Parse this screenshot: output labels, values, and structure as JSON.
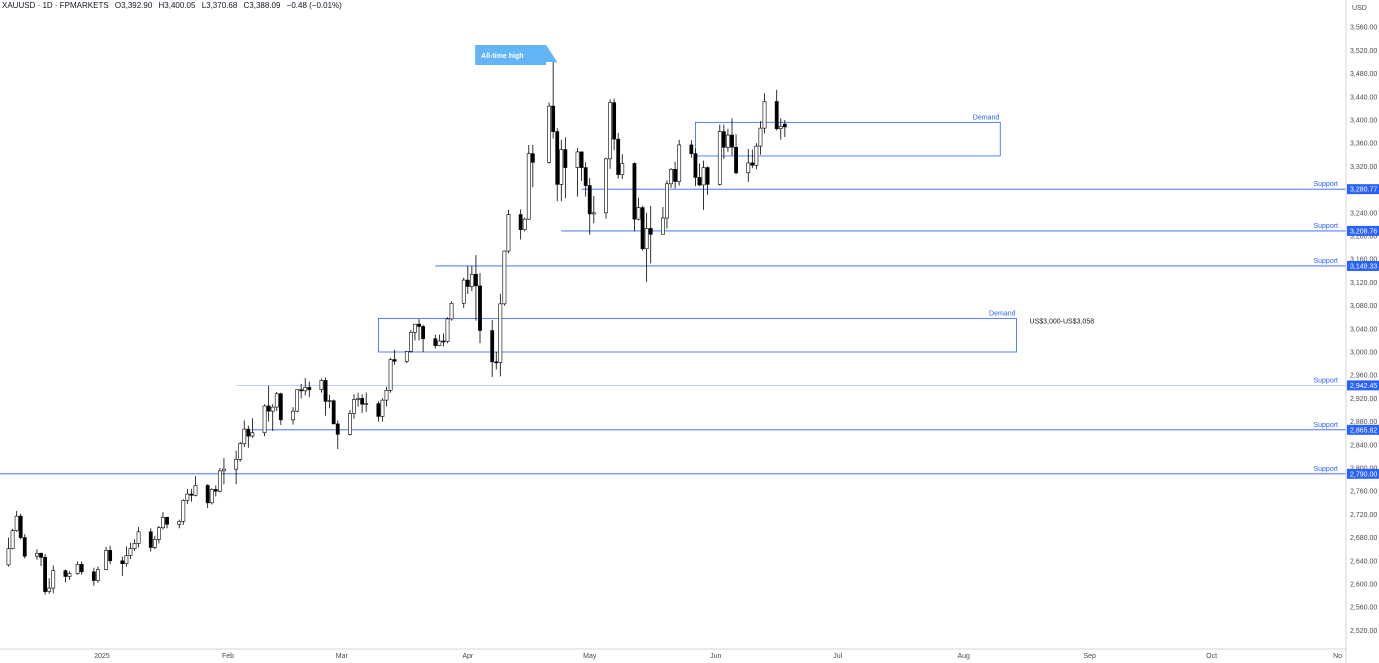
{
  "header": {
    "symbol": "XAUUSD · 1D · FPMARKETS",
    "open": "O3,392.90",
    "high": "H3,400.05",
    "low": "L3,370.68",
    "close": "C3,388.09",
    "change": "−0.48 (−0.01%)"
  },
  "colors": {
    "up_candle": "#ffffff",
    "down_candle": "#000000",
    "support_line": "#2962ff",
    "support_label_bg": "#2962ff",
    "zone_border": "#2962ff",
    "callout_bg": "#64b5f6"
  },
  "chart_data": {
    "type": "candlestick",
    "currency_label": "USD",
    "y_ticks": [
      "3,560.00",
      "3,520.00",
      "3,480.00",
      "3,440.00",
      "3,400.00",
      "3,360.00",
      "3,320.00",
      "3,280.00",
      "3,240.00",
      "3,200.00",
      "3,160.00",
      "3,120.00",
      "3,080.00",
      "3,040.00",
      "3,000.00",
      "2,960.00",
      "2,920.00",
      "2,880.00",
      "2,840.00",
      "2,800.00",
      "2,760.00",
      "2,720.00",
      "2,680.00",
      "2,640.00",
      "2,600.00",
      "2,560.00",
      "2,520.00"
    ],
    "x_ticks": [
      {
        "label": "2025",
        "date": "2025-01-01"
      },
      {
        "label": "Feb",
        "date": "2025-02-01"
      },
      {
        "label": "Mar",
        "date": "2025-03-01"
      },
      {
        "label": "Apr",
        "date": "2025-04-01"
      },
      {
        "label": "May",
        "date": "2025-05-01"
      },
      {
        "label": "Jun",
        "date": "2025-06-01"
      },
      {
        "label": "Jul",
        "date": "2025-07-01"
      },
      {
        "label": "Aug",
        "date": "2025-08-01"
      },
      {
        "label": "Sep",
        "date": "2025-09-01"
      },
      {
        "label": "Oct",
        "date": "2025-10-01"
      },
      {
        "label": "No",
        "date": "2025-11-01"
      }
    ],
    "ylim": [
      2500,
      3580
    ],
    "support_levels": [
      {
        "label": "Support",
        "value": 3280.77,
        "value_label": "3,280.77",
        "from": "2025-04-29"
      },
      {
        "label": "Support",
        "value": 3208.76,
        "value_label": "3,208.76",
        "from": "2025-04-24"
      },
      {
        "label": "Support",
        "value": 3148.33,
        "value_label": "3,148.33",
        "from": "2025-03-24"
      },
      {
        "label": "Support",
        "value": 2942.45,
        "value_label": "2,942.45",
        "from": "2025-02-03"
      },
      {
        "label": "Support",
        "value": 2865.82,
        "value_label": "2,865.82",
        "from": "2025-02-07"
      },
      {
        "label": "Support",
        "value": 2790.0,
        "value_label": "2,790.00",
        "from": "2024-12-01"
      }
    ],
    "demand_zones": [
      {
        "label": "Demand",
        "from": "2025-05-27",
        "to": "2025-08-10",
        "low": 3338,
        "high": 3396
      },
      {
        "label": "Demand",
        "from": "2025-03-10",
        "to": "2025-08-14",
        "low": 3000,
        "high": 3058,
        "note": "US$3,000-US$3,058"
      }
    ],
    "annotation": {
      "label": "All-time high",
      "date": "2025-04-22",
      "value": 3500
    },
    "candles": [
      {
        "d": "2024-12-02",
        "o": 2641,
        "h": 2650,
        "l": 2620,
        "c": 2637
      },
      {
        "d": "2024-12-03",
        "o": 2637,
        "h": 2650,
        "l": 2628,
        "c": 2643
      },
      {
        "d": "2024-12-04",
        "o": 2643,
        "h": 2660,
        "l": 2633,
        "c": 2651
      },
      {
        "d": "2024-12-05",
        "o": 2651,
        "h": 2661,
        "l": 2624,
        "c": 2632
      },
      {
        "d": "2024-12-06",
        "o": 2632,
        "h": 2645,
        "l": 2613,
        "c": 2633
      },
      {
        "d": "2024-12-09",
        "o": 2633,
        "h": 2680,
        "l": 2630,
        "c": 2661
      },
      {
        "d": "2024-12-10",
        "o": 2661,
        "h": 2695,
        "l": 2660,
        "c": 2692
      },
      {
        "d": "2024-12-11",
        "o": 2692,
        "h": 2726,
        "l": 2690,
        "c": 2717
      },
      {
        "d": "2024-12-12",
        "o": 2717,
        "h": 2721,
        "l": 2677,
        "c": 2680
      },
      {
        "d": "2024-12-13",
        "o": 2680,
        "h": 2686,
        "l": 2644,
        "c": 2648
      },
      {
        "d": "2024-12-16",
        "o": 2648,
        "h": 2660,
        "l": 2642,
        "c": 2653
      },
      {
        "d": "2024-12-17",
        "o": 2653,
        "h": 2654,
        "l": 2631,
        "c": 2646
      },
      {
        "d": "2024-12-18",
        "o": 2646,
        "h": 2652,
        "l": 2582,
        "c": 2587
      },
      {
        "d": "2024-12-19",
        "o": 2587,
        "h": 2610,
        "l": 2583,
        "c": 2593
      },
      {
        "d": "2024-12-20",
        "o": 2593,
        "h": 2632,
        "l": 2584,
        "c": 2623
      },
      {
        "d": "2024-12-23",
        "o": 2623,
        "h": 2625,
        "l": 2603,
        "c": 2613
      },
      {
        "d": "2024-12-24",
        "o": 2613,
        "h": 2622,
        "l": 2607,
        "c": 2618
      },
      {
        "d": "2024-12-26",
        "o": 2618,
        "h": 2639,
        "l": 2616,
        "c": 2634
      },
      {
        "d": "2024-12-27",
        "o": 2634,
        "h": 2639,
        "l": 2616,
        "c": 2621
      },
      {
        "d": "2024-12-30",
        "o": 2621,
        "h": 2628,
        "l": 2597,
        "c": 2606
      },
      {
        "d": "2024-12-31",
        "o": 2606,
        "h": 2630,
        "l": 2602,
        "c": 2625
      },
      {
        "d": "2025-01-02",
        "o": 2625,
        "h": 2664,
        "l": 2624,
        "c": 2658
      },
      {
        "d": "2025-01-03",
        "o": 2658,
        "h": 2666,
        "l": 2634,
        "c": 2640
      },
      {
        "d": "2025-01-06",
        "o": 2640,
        "h": 2647,
        "l": 2614,
        "c": 2635
      },
      {
        "d": "2025-01-07",
        "o": 2635,
        "h": 2665,
        "l": 2630,
        "c": 2649
      },
      {
        "d": "2025-01-08",
        "o": 2649,
        "h": 2671,
        "l": 2643,
        "c": 2661
      },
      {
        "d": "2025-01-09",
        "o": 2661,
        "h": 2677,
        "l": 2657,
        "c": 2670
      },
      {
        "d": "2025-01-10",
        "o": 2670,
        "h": 2698,
        "l": 2663,
        "c": 2690
      },
      {
        "d": "2025-01-13",
        "o": 2690,
        "h": 2696,
        "l": 2656,
        "c": 2663
      },
      {
        "d": "2025-01-14",
        "o": 2663,
        "h": 2683,
        "l": 2660,
        "c": 2677
      },
      {
        "d": "2025-01-15",
        "o": 2677,
        "h": 2700,
        "l": 2670,
        "c": 2697
      },
      {
        "d": "2025-01-16",
        "o": 2697,
        "h": 2724,
        "l": 2694,
        "c": 2715
      },
      {
        "d": "2025-01-17",
        "o": 2715,
        "h": 2716,
        "l": 2696,
        "c": 2703
      },
      {
        "d": "2025-01-20",
        "o": 2703,
        "h": 2711,
        "l": 2696,
        "c": 2708
      },
      {
        "d": "2025-01-21",
        "o": 2708,
        "h": 2746,
        "l": 2702,
        "c": 2744
      },
      {
        "d": "2025-01-22",
        "o": 2744,
        "h": 2764,
        "l": 2738,
        "c": 2755
      },
      {
        "d": "2025-01-23",
        "o": 2755,
        "h": 2764,
        "l": 2742,
        "c": 2753
      },
      {
        "d": "2025-01-24",
        "o": 2753,
        "h": 2786,
        "l": 2751,
        "c": 2770
      },
      {
        "d": "2025-01-27",
        "o": 2770,
        "h": 2772,
        "l": 2731,
        "c": 2740
      },
      {
        "d": "2025-01-28",
        "o": 2740,
        "h": 2765,
        "l": 2737,
        "c": 2763
      },
      {
        "d": "2025-01-29",
        "o": 2763,
        "h": 2770,
        "l": 2751,
        "c": 2760
      },
      {
        "d": "2025-01-30",
        "o": 2760,
        "h": 2800,
        "l": 2758,
        "c": 2795
      },
      {
        "d": "2025-01-31",
        "o": 2795,
        "h": 2817,
        "l": 2772,
        "c": 2798
      },
      {
        "d": "2025-02-03",
        "o": 2798,
        "h": 2830,
        "l": 2772,
        "c": 2815
      },
      {
        "d": "2025-02-04",
        "o": 2815,
        "h": 2845,
        "l": 2811,
        "c": 2842
      },
      {
        "d": "2025-02-05",
        "o": 2842,
        "h": 2882,
        "l": 2836,
        "c": 2867
      },
      {
        "d": "2025-02-06",
        "o": 2867,
        "h": 2873,
        "l": 2835,
        "c": 2855
      },
      {
        "d": "2025-02-07",
        "o": 2855,
        "h": 2886,
        "l": 2852,
        "c": 2861
      },
      {
        "d": "2025-02-10",
        "o": 2861,
        "h": 2910,
        "l": 2855,
        "c": 2907
      },
      {
        "d": "2025-02-11",
        "o": 2907,
        "h": 2942,
        "l": 2880,
        "c": 2898
      },
      {
        "d": "2025-02-12",
        "o": 2898,
        "h": 2910,
        "l": 2864,
        "c": 2905
      },
      {
        "d": "2025-02-13",
        "o": 2905,
        "h": 2931,
        "l": 2898,
        "c": 2928
      },
      {
        "d": "2025-02-14",
        "o": 2928,
        "h": 2930,
        "l": 2874,
        "c": 2883
      },
      {
        "d": "2025-02-17",
        "o": 2883,
        "h": 2905,
        "l": 2875,
        "c": 2898
      },
      {
        "d": "2025-02-18",
        "o": 2898,
        "h": 2935,
        "l": 2896,
        "c": 2935
      },
      {
        "d": "2025-02-19",
        "o": 2935,
        "h": 2945,
        "l": 2920,
        "c": 2933
      },
      {
        "d": "2025-02-20",
        "o": 2933,
        "h": 2955,
        "l": 2925,
        "c": 2939
      },
      {
        "d": "2025-02-21",
        "o": 2939,
        "h": 2949,
        "l": 2922,
        "c": 2935
      },
      {
        "d": "2025-02-24",
        "o": 2935,
        "h": 2954,
        "l": 2930,
        "c": 2951
      },
      {
        "d": "2025-02-25",
        "o": 2951,
        "h": 2956,
        "l": 2890,
        "c": 2915
      },
      {
        "d": "2025-02-26",
        "o": 2915,
        "h": 2926,
        "l": 2903,
        "c": 2916
      },
      {
        "d": "2025-02-27",
        "o": 2916,
        "h": 2918,
        "l": 2876,
        "c": 2876
      },
      {
        "d": "2025-02-28",
        "o": 2876,
        "h": 2882,
        "l": 2833,
        "c": 2858
      },
      {
        "d": "2025-03-03",
        "o": 2858,
        "h": 2900,
        "l": 2856,
        "c": 2894
      },
      {
        "d": "2025-03-04",
        "o": 2894,
        "h": 2927,
        "l": 2885,
        "c": 2918
      },
      {
        "d": "2025-03-05",
        "o": 2918,
        "h": 2930,
        "l": 2906,
        "c": 2920
      },
      {
        "d": "2025-03-06",
        "o": 2920,
        "h": 2927,
        "l": 2895,
        "c": 2910
      },
      {
        "d": "2025-03-07",
        "o": 2910,
        "h": 2930,
        "l": 2897,
        "c": 2911
      },
      {
        "d": "2025-03-10",
        "o": 2911,
        "h": 2915,
        "l": 2880,
        "c": 2889
      },
      {
        "d": "2025-03-11",
        "o": 2889,
        "h": 2920,
        "l": 2880,
        "c": 2917
      },
      {
        "d": "2025-03-12",
        "o": 2917,
        "h": 2940,
        "l": 2906,
        "c": 2934
      },
      {
        "d": "2025-03-13",
        "o": 2934,
        "h": 2990,
        "l": 2930,
        "c": 2987
      },
      {
        "d": "2025-03-14",
        "o": 2987,
        "h": 3004,
        "l": 2978,
        "c": 2984
      },
      {
        "d": "2025-03-17",
        "o": 2984,
        "h": 3002,
        "l": 2981,
        "c": 3001
      },
      {
        "d": "2025-03-18",
        "o": 3001,
        "h": 3038,
        "l": 2999,
        "c": 3034
      },
      {
        "d": "2025-03-19",
        "o": 3034,
        "h": 3045,
        "l": 3020,
        "c": 3048
      },
      {
        "d": "2025-03-20",
        "o": 3048,
        "h": 3057,
        "l": 3020,
        "c": 3044
      },
      {
        "d": "2025-03-21",
        "o": 3044,
        "h": 3047,
        "l": 3000,
        "c": 3023
      },
      {
        "d": "2025-03-24",
        "o": 3023,
        "h": 3030,
        "l": 3006,
        "c": 3011
      },
      {
        "d": "2025-03-25",
        "o": 3011,
        "h": 3030,
        "l": 3010,
        "c": 3019
      },
      {
        "d": "2025-03-26",
        "o": 3019,
        "h": 3032,
        "l": 3010,
        "c": 3018
      },
      {
        "d": "2025-03-27",
        "o": 3018,
        "h": 3060,
        "l": 3015,
        "c": 3057
      },
      {
        "d": "2025-03-28",
        "o": 3057,
        "h": 3087,
        "l": 3054,
        "c": 3084
      },
      {
        "d": "2025-03-31",
        "o": 3084,
        "h": 3128,
        "l": 3076,
        "c": 3124
      },
      {
        "d": "2025-04-01",
        "o": 3124,
        "h": 3149,
        "l": 3100,
        "c": 3113
      },
      {
        "d": "2025-04-02",
        "o": 3113,
        "h": 3148,
        "l": 3105,
        "c": 3134
      },
      {
        "d": "2025-04-03",
        "o": 3134,
        "h": 3167,
        "l": 3054,
        "c": 3114
      },
      {
        "d": "2025-04-04",
        "o": 3114,
        "h": 3136,
        "l": 3015,
        "c": 3037
      },
      {
        "d": "2025-04-07",
        "o": 3037,
        "h": 3055,
        "l": 2957,
        "c": 2983
      },
      {
        "d": "2025-04-08",
        "o": 2983,
        "h": 3000,
        "l": 2970,
        "c": 2982
      },
      {
        "d": "2025-04-09",
        "o": 2982,
        "h": 3100,
        "l": 2958,
        "c": 3083
      },
      {
        "d": "2025-04-10",
        "o": 3083,
        "h": 3175,
        "l": 3080,
        "c": 3174
      },
      {
        "d": "2025-04-11",
        "o": 3174,
        "h": 3245,
        "l": 3170,
        "c": 3237
      },
      {
        "d": "2025-04-14",
        "o": 3237,
        "h": 3246,
        "l": 3194,
        "c": 3211
      },
      {
        "d": "2025-04-15",
        "o": 3211,
        "h": 3232,
        "l": 3208,
        "c": 3229
      },
      {
        "d": "2025-04-16",
        "o": 3229,
        "h": 3357,
        "l": 3228,
        "c": 3342
      },
      {
        "d": "2025-04-17",
        "o": 3342,
        "h": 3357,
        "l": 3284,
        "c": 3327
      },
      {
        "d": "2025-04-21",
        "o": 3327,
        "h": 3430,
        "l": 3325,
        "c": 3424
      },
      {
        "d": "2025-04-22",
        "o": 3424,
        "h": 3500,
        "l": 3368,
        "c": 3380
      },
      {
        "d": "2025-04-23",
        "o": 3380,
        "h": 3386,
        "l": 3260,
        "c": 3289
      },
      {
        "d": "2025-04-24",
        "o": 3289,
        "h": 3366,
        "l": 3260,
        "c": 3349
      },
      {
        "d": "2025-04-25",
        "o": 3349,
        "h": 3370,
        "l": 3265,
        "c": 3318
      },
      {
        "d": "2025-04-28",
        "o": 3318,
        "h": 3352,
        "l": 3268,
        "c": 3345
      },
      {
        "d": "2025-04-29",
        "o": 3345,
        "h": 3346,
        "l": 3295,
        "c": 3318
      },
      {
        "d": "2025-04-30",
        "o": 3318,
        "h": 3327,
        "l": 3268,
        "c": 3287
      },
      {
        "d": "2025-05-01",
        "o": 3287,
        "h": 3300,
        "l": 3202,
        "c": 3238
      },
      {
        "d": "2025-05-02",
        "o": 3238,
        "h": 3269,
        "l": 3222,
        "c": 3240
      },
      {
        "d": "2025-05-05",
        "o": 3240,
        "h": 3335,
        "l": 3230,
        "c": 3333
      },
      {
        "d": "2025-05-06",
        "o": 3333,
        "h": 3436,
        "l": 3316,
        "c": 3430
      },
      {
        "d": "2025-05-07",
        "o": 3430,
        "h": 3437,
        "l": 3348,
        "c": 3367
      },
      {
        "d": "2025-05-08",
        "o": 3367,
        "h": 3378,
        "l": 3299,
        "c": 3306
      },
      {
        "d": "2025-05-09",
        "o": 3306,
        "h": 3341,
        "l": 3298,
        "c": 3325
      },
      {
        "d": "2025-05-12",
        "o": 3325,
        "h": 3327,
        "l": 3208,
        "c": 3229
      },
      {
        "d": "2025-05-13",
        "o": 3229,
        "h": 3266,
        "l": 3227,
        "c": 3249
      },
      {
        "d": "2025-05-14",
        "o": 3249,
        "h": 3252,
        "l": 3175,
        "c": 3178
      },
      {
        "d": "2025-05-15",
        "o": 3178,
        "h": 3240,
        "l": 3121,
        "c": 3213
      },
      {
        "d": "2025-05-16",
        "o": 3213,
        "h": 3252,
        "l": 3153,
        "c": 3203
      },
      {
        "d": "2025-05-19",
        "o": 3203,
        "h": 3250,
        "l": 3205,
        "c": 3231
      },
      {
        "d": "2025-05-20",
        "o": 3231,
        "h": 3296,
        "l": 3213,
        "c": 3290
      },
      {
        "d": "2025-05-21",
        "o": 3290,
        "h": 3317,
        "l": 3283,
        "c": 3315
      },
      {
        "d": "2025-05-22",
        "o": 3315,
        "h": 3328,
        "l": 3282,
        "c": 3294
      },
      {
        "d": "2025-05-23",
        "o": 3294,
        "h": 3366,
        "l": 3287,
        "c": 3357
      },
      {
        "d": "2025-05-26",
        "o": 3357,
        "h": 3365,
        "l": 3335,
        "c": 3342
      },
      {
        "d": "2025-05-27",
        "o": 3342,
        "h": 3351,
        "l": 3286,
        "c": 3301
      },
      {
        "d": "2025-05-28",
        "o": 3301,
        "h": 3325,
        "l": 3286,
        "c": 3288
      },
      {
        "d": "2025-05-29",
        "o": 3288,
        "h": 3330,
        "l": 3245,
        "c": 3318
      },
      {
        "d": "2025-05-30",
        "o": 3318,
        "h": 3320,
        "l": 3271,
        "c": 3289
      },
      {
        "d": "2025-06-02",
        "o": 3289,
        "h": 3392,
        "l": 3287,
        "c": 3380
      },
      {
        "d": "2025-06-03",
        "o": 3380,
        "h": 3392,
        "l": 3333,
        "c": 3353
      },
      {
        "d": "2025-06-04",
        "o": 3353,
        "h": 3385,
        "l": 3345,
        "c": 3374
      },
      {
        "d": "2025-06-05",
        "o": 3374,
        "h": 3403,
        "l": 3339,
        "c": 3353
      },
      {
        "d": "2025-06-06",
        "o": 3353,
        "h": 3375,
        "l": 3306,
        "c": 3309
      },
      {
        "d": "2025-06-09",
        "o": 3309,
        "h": 3350,
        "l": 3293,
        "c": 3326
      },
      {
        "d": "2025-06-10",
        "o": 3326,
        "h": 3349,
        "l": 3317,
        "c": 3322
      },
      {
        "d": "2025-06-11",
        "o": 3322,
        "h": 3360,
        "l": 3315,
        "c": 3355
      },
      {
        "d": "2025-06-12",
        "o": 3355,
        "h": 3398,
        "l": 3340,
        "c": 3386
      },
      {
        "d": "2025-06-13",
        "o": 3386,
        "h": 3446,
        "l": 3377,
        "c": 3432
      },
      {
        "d": "2025-06-16",
        "o": 3432,
        "h": 3452,
        "l": 3382,
        "c": 3385
      },
      {
        "d": "2025-06-17",
        "o": 3385,
        "h": 3403,
        "l": 3366,
        "c": 3389
      },
      {
        "d": "2025-06-18",
        "o": 3392.9,
        "h": 3400.05,
        "l": 3370.68,
        "c": 3388.09
      }
    ]
  }
}
